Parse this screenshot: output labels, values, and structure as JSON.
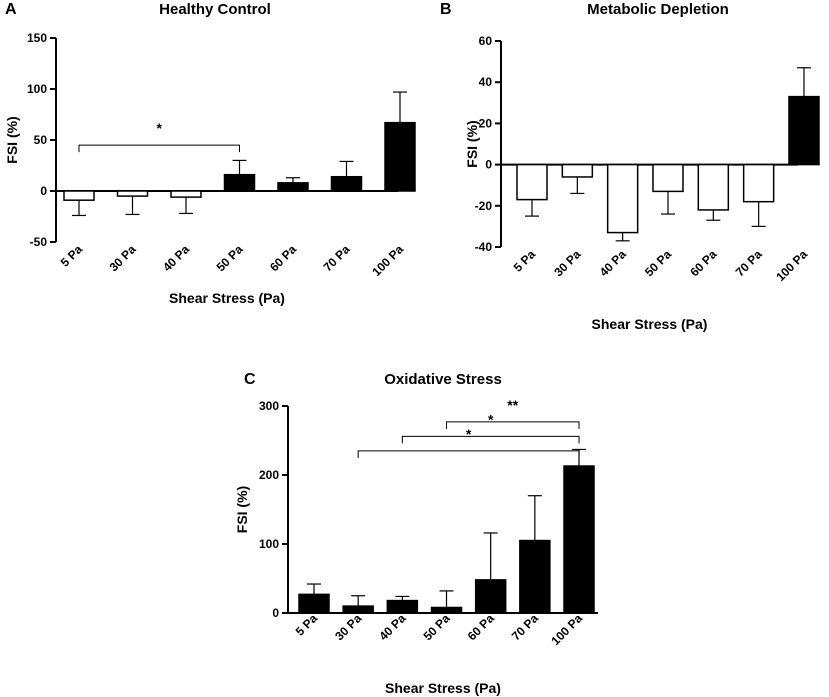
{
  "chart_data": [
    {
      "panel": "A",
      "type": "bar",
      "title": "Healthy Control",
      "xlabel": "Shear Stress (Pa)",
      "ylabel": "FSI (%)",
      "ylim": [
        -50,
        150
      ],
      "yticks": [
        "-50",
        "0",
        "50",
        "100",
        "150"
      ],
      "categories": [
        "5 Pa",
        "30 Pa",
        "40 Pa",
        "50 Pa",
        "60 Pa",
        "70 Pa",
        "100 Pa"
      ],
      "values": [
        -9,
        -5,
        -6,
        16,
        8,
        14,
        67
      ],
      "errors": [
        15,
        18,
        16,
        14,
        5,
        15,
        30
      ],
      "fills": [
        "open",
        "open",
        "open",
        "filled",
        "filled",
        "filled",
        "filled"
      ],
      "significance": [
        {
          "from": "5 Pa",
          "to": "50 Pa",
          "label": "*",
          "level": 45
        }
      ]
    },
    {
      "panel": "B",
      "type": "bar",
      "title": "Metabolic Depletion",
      "xlabel": "Shear Stress (Pa)",
      "ylabel": "FSI (%)",
      "ylim": [
        -40,
        60
      ],
      "yticks": [
        "-40",
        "-20",
        "0",
        "20",
        "40",
        "60"
      ],
      "categories": [
        "5 Pa",
        "30 Pa",
        "40 Pa",
        "50 Pa",
        "60 Pa",
        "70 Pa",
        "100 Pa"
      ],
      "values": [
        -17,
        -6,
        -33,
        -13,
        -22,
        -18,
        33
      ],
      "errors": [
        8,
        8,
        4,
        11,
        5,
        12,
        14
      ],
      "fills": [
        "open",
        "open",
        "open",
        "open",
        "open",
        "open",
        "filled"
      ],
      "significance": []
    },
    {
      "panel": "C",
      "type": "bar",
      "title": "Oxidative Stress",
      "xlabel": "Shear Stress (Pa)",
      "ylabel": "FSI (%)",
      "ylim": [
        0,
        300
      ],
      "yticks": [
        "0",
        "100",
        "200",
        "300"
      ],
      "categories": [
        "5 Pa",
        "30 Pa",
        "40 Pa",
        "50 Pa",
        "60 Pa",
        "70 Pa",
        "100 Pa"
      ],
      "values": [
        27,
        10,
        18,
        8,
        48,
        105,
        213
      ],
      "errors": [
        15,
        15,
        6,
        24,
        68,
        65,
        24
      ],
      "fills": [
        "filled",
        "filled",
        "filled",
        "filled",
        "filled",
        "filled",
        "filled"
      ],
      "significance": [
        {
          "from": "50 Pa",
          "to": "100 Pa",
          "label": "**",
          "level": 277
        },
        {
          "from": "40 Pa",
          "to": "100 Pa",
          "label": "*",
          "level": 256
        },
        {
          "from": "30 Pa",
          "to": "100 Pa",
          "label": "*",
          "level": 235
        }
      ]
    }
  ]
}
